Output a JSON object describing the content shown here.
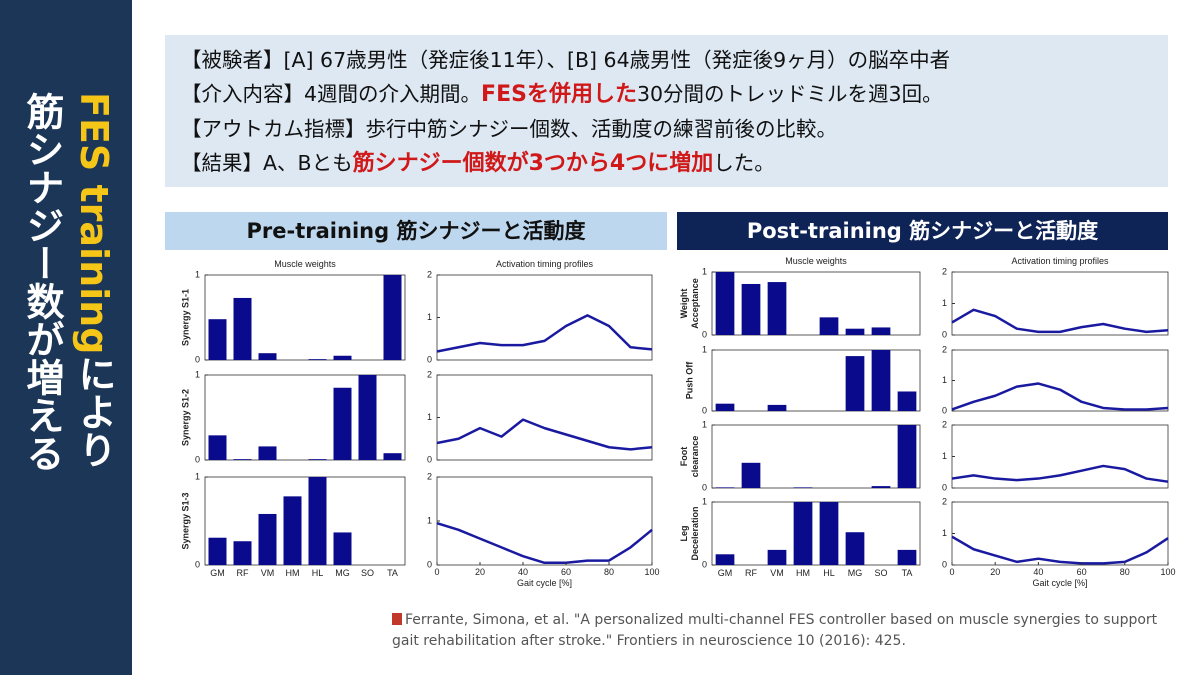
{
  "sidebar": {
    "highlight": "FES training",
    "rest1": "により",
    "rest2": "筋シナジー数が増える"
  },
  "summary": {
    "lines": [
      [
        {
          "text": "【被験者】[A] 67歳男性（発症後11年）、[B] 64歳男性（発症後9ヶ月）の脳卒中者",
          "highlight": false
        }
      ],
      [
        {
          "text": "【介入内容】4週間の介入期間。",
          "highlight": false
        },
        {
          "text": "FESを併用した",
          "highlight": true
        },
        {
          "text": "30分間のトレッドミルを週3回。",
          "highlight": false
        }
      ],
      [
        {
          "text": "【アウトカム指標】歩行中筋シナジー個数、活動度の練習前後の比較。",
          "highlight": false
        }
      ],
      [
        {
          "text": "【結果】A、Bとも",
          "highlight": false
        },
        {
          "text": "筋シナジー個数が3つから4つに増加",
          "highlight": true
        },
        {
          "text": "した。",
          "highlight": false
        }
      ]
    ]
  },
  "panels": [
    {
      "header": "Pre-training 筋シナジーと活動度",
      "header_color": "#bdd7ee",
      "header_text_color": "#111111",
      "weights_title": "Muscle weights",
      "activation_title": "Activation timing profiles",
      "xlabel": "Gait cycle [%]",
      "categories": [
        "GM",
        "RF",
        "VM",
        "HM",
        "HL",
        "MG",
        "SO",
        "TA"
      ],
      "weight_ylim": [
        0,
        1
      ],
      "weight_yticks": [
        0,
        1
      ],
      "act_ylim": [
        0,
        2
      ],
      "act_yticks": [
        0,
        1,
        2
      ],
      "act_xlim": [
        0,
        100
      ],
      "act_xticks": [
        0,
        20,
        40,
        60,
        80,
        100
      ],
      "bar_color": "#0a0a8c",
      "line_color": "#1a1aa0",
      "x": [
        0,
        10,
        20,
        30,
        40,
        50,
        60,
        70,
        80,
        90,
        100
      ],
      "synergies": [
        {
          "label": [
            "Synergy S1-1"
          ],
          "weights": [
            0.48,
            0.73,
            0.08,
            0,
            0.01,
            0.05,
            0,
            1.0
          ],
          "activation": [
            0.2,
            0.3,
            0.4,
            0.35,
            0.35,
            0.45,
            0.8,
            1.05,
            0.8,
            0.3,
            0.25
          ]
        },
        {
          "label": [
            "Synergy S1-2"
          ],
          "weights": [
            0.29,
            0.01,
            0.16,
            0,
            0.01,
            0.85,
            1.0,
            0.08
          ],
          "activation": [
            0.4,
            0.5,
            0.75,
            0.55,
            0.95,
            0.75,
            0.6,
            0.45,
            0.3,
            0.25,
            0.3
          ]
        },
        {
          "label": [
            "Synergy S1-3"
          ],
          "weights": [
            0.31,
            0.27,
            0.58,
            0.78,
            1.0,
            0.37,
            0,
            0
          ],
          "activation": [
            0.95,
            0.8,
            0.6,
            0.4,
            0.2,
            0.05,
            0.05,
            0.1,
            0.1,
            0.4,
            0.8
          ]
        }
      ]
    },
    {
      "header": "Post-training 筋シナジーと活動度",
      "header_color": "#0f2456",
      "header_text_color": "#ffffff",
      "weights_title": "Muscle weights",
      "activation_title": "Activation timing profiles",
      "xlabel": "Gait cycle [%]",
      "categories": [
        "GM",
        "RF",
        "VM",
        "HM",
        "HL",
        "MG",
        "SO",
        "TA"
      ],
      "weight_ylim": [
        0,
        1
      ],
      "weight_yticks": [
        0,
        1
      ],
      "act_ylim": [
        0,
        2
      ],
      "act_yticks": [
        0,
        1,
        2
      ],
      "act_xlim": [
        0,
        100
      ],
      "act_xticks": [
        0,
        20,
        40,
        60,
        80,
        100
      ],
      "bar_color": "#0a0a8c",
      "line_color": "#1a1aa0",
      "x": [
        0,
        10,
        20,
        30,
        40,
        50,
        60,
        70,
        80,
        90,
        100
      ],
      "synergies": [
        {
          "label": [
            "Weight",
            "Acceptance"
          ],
          "weights": [
            1.0,
            0.81,
            0.84,
            0,
            0.28,
            0.1,
            0.12,
            0
          ],
          "activation": [
            0.4,
            0.8,
            0.6,
            0.2,
            0.1,
            0.1,
            0.25,
            0.35,
            0.2,
            0.1,
            0.15
          ]
        },
        {
          "label": [
            "Push Off"
          ],
          "weights": [
            0.12,
            0,
            0.1,
            0,
            0,
            0.9,
            1.0,
            0.32
          ],
          "activation": [
            0.05,
            0.3,
            0.5,
            0.8,
            0.9,
            0.7,
            0.3,
            0.1,
            0.05,
            0.05,
            0.1
          ]
        },
        {
          "label": [
            "Foot",
            "clearance"
          ],
          "weights": [
            0.01,
            0.4,
            0,
            0.01,
            0,
            0,
            0.03,
            1.0
          ],
          "activation": [
            0.3,
            0.4,
            0.3,
            0.25,
            0.3,
            0.4,
            0.55,
            0.7,
            0.6,
            0.3,
            0.2
          ]
        },
        {
          "label": [
            "Leg",
            "Deceleration"
          ],
          "weights": [
            0.17,
            0,
            0.24,
            1.0,
            1.0,
            0.52,
            0,
            0.24
          ],
          "activation": [
            0.9,
            0.5,
            0.3,
            0.1,
            0.2,
            0.1,
            0.05,
            0.05,
            0.1,
            0.4,
            0.85
          ]
        }
      ]
    }
  ],
  "citation": "Ferrante, Simona, et al. \"A personalized multi-channel FES controller based on muscle synergies to support gait rehabilitation after stroke.\" Frontiers in neuroscience 10 (2016): 425."
}
